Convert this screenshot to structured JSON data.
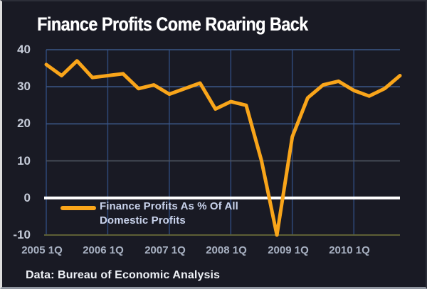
{
  "title": "Finance Profits Come Roaring Back",
  "source": "Data: Bureau of Economic Analysis",
  "legend": {
    "line1": "Finance Profits As % Of All",
    "line2": "Domestic Profits"
  },
  "colors": {
    "background": "#191A24",
    "line": "#F9A51A",
    "zero_line": "#FFFFFF",
    "grid_horizontal_blue": "#3B5787",
    "grid_horizontal_gray": "#4E5560",
    "grid_vertical": "#2E4878",
    "axis_bottom_olive": "#5E6036",
    "y_label_text": "#C6CCD9",
    "x_label_text": "#A9B2C3",
    "title_text": "#FFFFFF",
    "legend_text": "#C9D3EC",
    "source_text": "#EEF1F6"
  },
  "chart_data": {
    "type": "line",
    "title": "Finance Profits Come Roaring Back",
    "xlabel": "",
    "ylabel": "",
    "unit": "%",
    "ylim": [
      -10,
      40
    ],
    "y_ticks": [
      40,
      30,
      20,
      10,
      0,
      -10
    ],
    "grid": true,
    "legend_position": "inside-bottom-left",
    "categories": [
      "2005 1Q",
      "2005 2Q",
      "2005 3Q",
      "2005 4Q",
      "2006 1Q",
      "2006 2Q",
      "2006 3Q",
      "2006 4Q",
      "2007 1Q",
      "2007 2Q",
      "2007 3Q",
      "2007 4Q",
      "2008 1Q",
      "2008 2Q",
      "2008 3Q",
      "2008 4Q",
      "2009 1Q",
      "2009 2Q",
      "2009 3Q",
      "2009 4Q",
      "2010 1Q",
      "2010 2Q",
      "2010 3Q",
      "2010 4Q"
    ],
    "x_tick_labels": [
      "2005 1Q",
      "2006 1Q",
      "2007 1Q",
      "2008 1Q",
      "2009 1Q",
      "2010 1Q"
    ],
    "x_tick_positions": [
      0,
      4,
      8,
      12,
      16,
      20
    ],
    "series": [
      {
        "name": "Finance Profits As % Of All Domestic Profits",
        "values": [
          36,
          33,
          37,
          32.5,
          33,
          33.5,
          29.5,
          30.5,
          28,
          29.5,
          31,
          24,
          26,
          25,
          10,
          -10,
          16.5,
          27,
          30.5,
          31.5,
          29,
          27.5,
          29.5,
          33
        ]
      }
    ]
  }
}
